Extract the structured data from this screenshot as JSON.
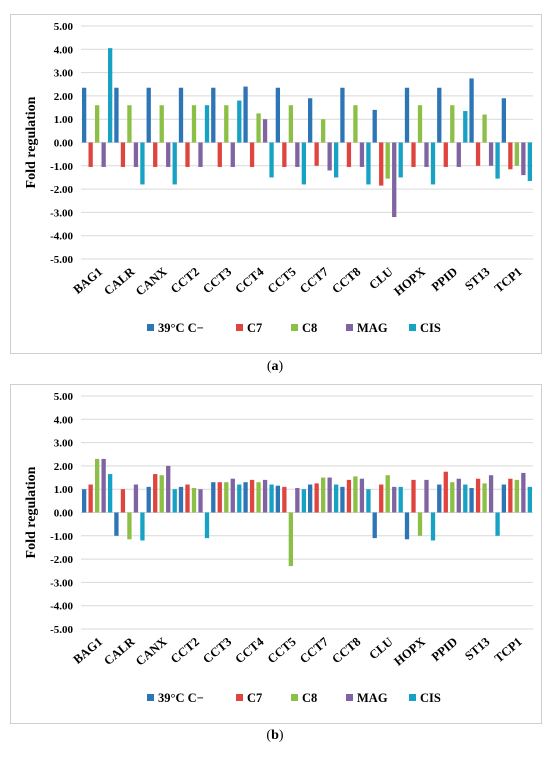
{
  "chart_data": [
    {
      "type": "bar",
      "panel_label": "a",
      "ylabel": "Fold regulation",
      "xlabel": "",
      "ylim": [
        -5,
        5
      ],
      "yticks": [
        "5.00",
        "4.00",
        "3.00",
        "2.00",
        "1.00",
        "0.00",
        "-1.00",
        "-2.00",
        "-3.00",
        "-4.00",
        "-5.00"
      ],
      "grid": true,
      "legend_position": "bottom",
      "categories": [
        "BAG1",
        "CALR",
        "CANX",
        "CCT2",
        "CCT3",
        "CCT4",
        "CCT5",
        "CCT7",
        "CCT8",
        "CLU",
        "HOPX",
        "PPID",
        "ST13",
        "TCP1"
      ],
      "series": [
        {
          "name": "39°C C−",
          "color": "#2e75b6",
          "values": [
            2.35,
            2.35,
            2.35,
            2.35,
            2.35,
            2.4,
            2.35,
            1.9,
            2.35,
            1.4,
            2.35,
            2.35,
            2.75,
            1.9
          ]
        },
        {
          "name": "C7",
          "color": "#e0443e",
          "values": [
            -1.05,
            -1.05,
            -1.05,
            -1.05,
            -1.05,
            -1.05,
            -1.05,
            -1.0,
            -1.05,
            -1.85,
            -1.05,
            -1.05,
            -1.0,
            -1.15
          ]
        },
        {
          "name": "C8",
          "color": "#8cbf45",
          "values": [
            1.6,
            1.6,
            1.6,
            1.6,
            1.6,
            1.25,
            1.6,
            1.0,
            1.6,
            -1.55,
            1.6,
            1.6,
            1.2,
            -1.0
          ]
        },
        {
          "name": "MAG",
          "color": "#8064a2",
          "values": [
            -1.05,
            -1.05,
            -1.05,
            -1.05,
            -1.05,
            1.0,
            -1.05,
            -1.2,
            -1.05,
            -3.2,
            -1.05,
            -1.05,
            -1.0,
            -1.4
          ]
        },
        {
          "name": "CIS",
          "color": "#17a2c4",
          "values": [
            4.05,
            -1.8,
            -1.8,
            1.6,
            1.8,
            -1.5,
            -1.8,
            -1.5,
            -1.8,
            -1.5,
            -1.8,
            1.35,
            -1.55,
            -1.65
          ]
        }
      ]
    },
    {
      "type": "bar",
      "panel_label": "b",
      "ylabel": "Fold regulation",
      "xlabel": "",
      "ylim": [
        -5,
        5
      ],
      "yticks": [
        "5.00",
        "4.00",
        "3.00",
        "2.00",
        "1.00",
        "0.00",
        "-1.00",
        "-2.00",
        "-3.00",
        "-4.00",
        "-5.00"
      ],
      "grid": true,
      "legend_position": "bottom",
      "categories": [
        "BAG1",
        "CALR",
        "CANX",
        "CCT2",
        "CCT3",
        "CCT4",
        "CCT5",
        "CCT7",
        "CCT8",
        "CLU",
        "HOPX",
        "PPID",
        "ST13",
        "TCP1"
      ],
      "series": [
        {
          "name": "39°C C−",
          "color": "#2e75b6",
          "values": [
            1.0,
            -1.0,
            1.1,
            1.1,
            1.3,
            1.3,
            1.15,
            1.2,
            1.1,
            -1.1,
            -1.15,
            1.2,
            1.05,
            1.2
          ]
        },
        {
          "name": "C7",
          "color": "#e0443e",
          "values": [
            1.2,
            1.0,
            1.65,
            1.2,
            1.3,
            1.4,
            1.1,
            1.25,
            1.4,
            1.2,
            1.4,
            1.75,
            1.45,
            1.45
          ]
        },
        {
          "name": "C8",
          "color": "#8cbf45",
          "values": [
            2.3,
            -1.15,
            1.6,
            1.05,
            1.3,
            1.3,
            -2.3,
            1.5,
            1.55,
            1.6,
            -1.0,
            1.3,
            1.25,
            1.4
          ]
        },
        {
          "name": "MAG",
          "color": "#8064a2",
          "values": [
            2.3,
            1.2,
            2.0,
            1.0,
            1.45,
            1.4,
            1.05,
            1.5,
            1.45,
            1.1,
            1.4,
            1.45,
            1.6,
            1.7
          ]
        },
        {
          "name": "CIS",
          "color": "#17a2c4",
          "values": [
            1.65,
            -1.2,
            1.0,
            -1.1,
            1.2,
            1.2,
            1.0,
            1.2,
            1.0,
            1.1,
            -1.2,
            1.2,
            -1.0,
            1.1
          ]
        }
      ]
    }
  ],
  "captions": [
    {
      "open": "(",
      "label": "a",
      "close": ")"
    },
    {
      "open": "(",
      "label": "b",
      "close": ")"
    }
  ]
}
